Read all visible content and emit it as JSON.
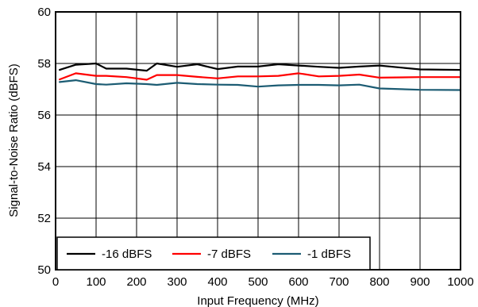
{
  "chart_data": {
    "type": "line",
    "title": "",
    "xlabel": "Input Frequency (MHz)",
    "ylabel": "Signal-to-Noise Ratio (dBFS)",
    "xlim": [
      0,
      1000
    ],
    "ylim": [
      50,
      60
    ],
    "xticks": [
      0,
      100,
      200,
      300,
      400,
      500,
      600,
      700,
      800,
      900,
      1000
    ],
    "yticks": [
      50,
      52,
      54,
      56,
      58,
      60
    ],
    "grid": true,
    "legend_position": "bottom-left",
    "series": [
      {
        "name": "-16 dBFS",
        "color": "#000000",
        "x": [
          10,
          50,
          100,
          125,
          175,
          225,
          250,
          300,
          350,
          400,
          450,
          500,
          550,
          600,
          650,
          700,
          750,
          800,
          900,
          1000
        ],
        "y": [
          57.75,
          57.95,
          58.0,
          57.8,
          57.8,
          57.72,
          58.0,
          57.87,
          57.97,
          57.78,
          57.88,
          57.88,
          57.97,
          57.92,
          57.87,
          57.83,
          57.88,
          57.92,
          57.77,
          57.75
        ]
      },
      {
        "name": "-7 dBFS",
        "color": "#ff0000",
        "x": [
          10,
          50,
          100,
          125,
          175,
          225,
          250,
          300,
          350,
          400,
          450,
          500,
          550,
          600,
          650,
          700,
          750,
          800,
          900,
          1000
        ],
        "y": [
          57.38,
          57.62,
          57.52,
          57.52,
          57.47,
          57.37,
          57.55,
          57.55,
          57.48,
          57.42,
          57.5,
          57.5,
          57.52,
          57.62,
          57.5,
          57.52,
          57.57,
          57.45,
          57.47,
          57.47
        ]
      },
      {
        "name": "-1 dBFS",
        "color": "#1c5c73",
        "x": [
          10,
          50,
          100,
          125,
          175,
          225,
          250,
          300,
          350,
          400,
          450,
          500,
          550,
          600,
          650,
          700,
          750,
          800,
          900,
          1000
        ],
        "y": [
          57.28,
          57.35,
          57.2,
          57.18,
          57.23,
          57.2,
          57.17,
          57.25,
          57.2,
          57.18,
          57.17,
          57.1,
          57.15,
          57.17,
          57.17,
          57.15,
          57.18,
          57.03,
          56.98,
          56.97
        ]
      }
    ]
  }
}
